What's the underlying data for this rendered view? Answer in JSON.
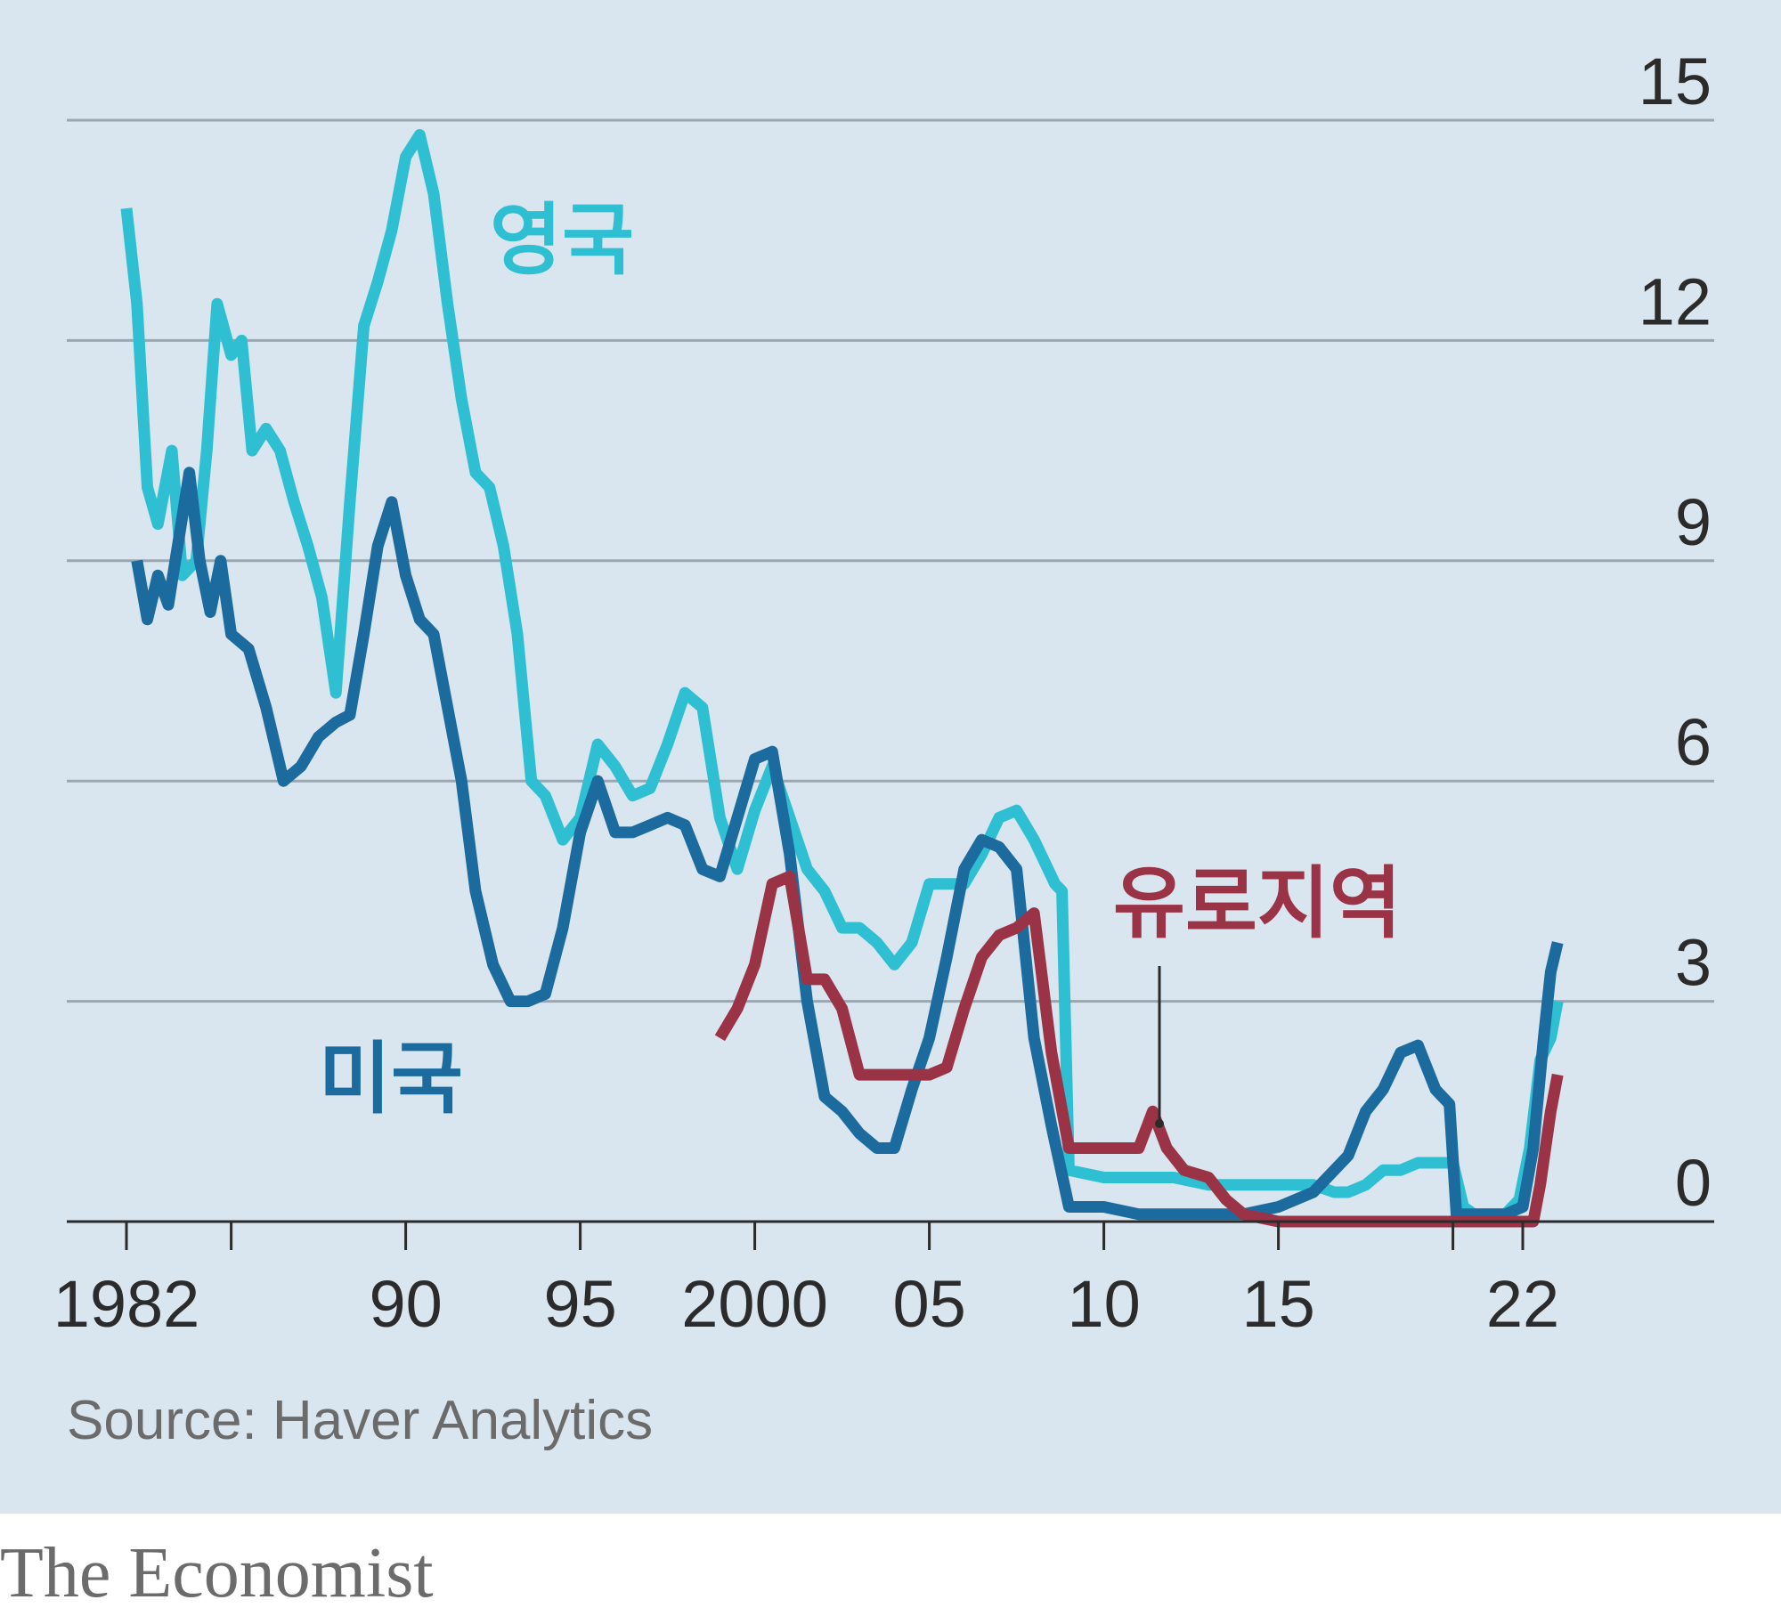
{
  "source": "Source: Haver Analytics",
  "brand": "The Economist",
  "colors": {
    "uk": "#2fbfd3",
    "us": "#1b6b9e",
    "euro": "#9b3346",
    "background": "#d9e6ef",
    "grid": "#9aa7b0",
    "axis": "#2b2b2b"
  },
  "chart_data": {
    "type": "line",
    "title": "",
    "xlabel": "",
    "ylabel": "",
    "ylim": [
      0,
      15
    ],
    "xlim": [
      1981.5,
      2025.5
    ],
    "yticks": [
      "0",
      "3",
      "6",
      "9",
      "12",
      "15"
    ],
    "xticks": [
      {
        "value": 1982,
        "label": "1982"
      },
      {
        "value": 1985,
        "label": ""
      },
      {
        "value": 1990,
        "label": "90"
      },
      {
        "value": 1995,
        "label": "95"
      },
      {
        "value": 2000,
        "label": "2000"
      },
      {
        "value": 2005,
        "label": "05"
      },
      {
        "value": 2010,
        "label": "10"
      },
      {
        "value": 2015,
        "label": "15"
      },
      {
        "value": 2020,
        "label": ""
      },
      {
        "value": 2022,
        "label": "22"
      }
    ],
    "grid": true,
    "legend": "inline labels",
    "series": [
      {
        "name": "영국",
        "key": "uk",
        "x": [
          1982.0,
          1982.3,
          1982.6,
          1982.9,
          1983.3,
          1983.6,
          1984.0,
          1984.3,
          1984.6,
          1985.0,
          1985.3,
          1985.6,
          1986.0,
          1986.4,
          1986.8,
          1987.2,
          1987.6,
          1988.0,
          1988.4,
          1988.8,
          1989.2,
          1989.6,
          1990.0,
          1990.4,
          1990.8,
          1991.2,
          1991.6,
          1992.0,
          1992.4,
          1992.8,
          1993.2,
          1993.6,
          1994.0,
          1994.5,
          1995.0,
          1995.5,
          1996.0,
          1996.5,
          1997.0,
          1997.5,
          1998.0,
          1998.5,
          1999.0,
          1999.5,
          2000.0,
          2000.5,
          2001.0,
          2001.5,
          2002.0,
          2002.5,
          2003.0,
          2003.5,
          2004.0,
          2004.5,
          2005.0,
          2005.5,
          2006.0,
          2006.5,
          2007.0,
          2007.5,
          2008.0,
          2008.3,
          2008.6,
          2008.8,
          2009.0,
          2010.0,
          2011.0,
          2012.0,
          2013.0,
          2014.0,
          2015.0,
          2016.0,
          2016.6,
          2017.0,
          2017.5,
          2018.0,
          2018.5,
          2019.0,
          2019.5,
          2020.0,
          2020.3,
          2020.6,
          2021.0,
          2021.5,
          2021.9,
          2022.2,
          2022.5,
          2022.8,
          2023.0
        ],
        "y": [
          13.8,
          12.5,
          10.0,
          9.5,
          10.5,
          8.8,
          9.0,
          10.5,
          12.5,
          11.8,
          12.0,
          10.5,
          10.8,
          10.5,
          9.8,
          9.2,
          8.5,
          7.2,
          9.8,
          12.2,
          12.8,
          13.5,
          14.5,
          14.8,
          14.0,
          12.5,
          11.2,
          10.2,
          10.0,
          9.2,
          8.0,
          6.0,
          5.8,
          5.2,
          5.5,
          6.5,
          6.2,
          5.8,
          5.9,
          6.5,
          7.2,
          7.0,
          5.5,
          4.8,
          5.6,
          6.2,
          5.5,
          4.8,
          4.5,
          4.0,
          4.0,
          3.8,
          3.5,
          3.8,
          4.6,
          4.6,
          4.6,
          5.0,
          5.5,
          5.6,
          5.2,
          4.9,
          4.6,
          4.5,
          0.7,
          0.6,
          0.6,
          0.6,
          0.5,
          0.5,
          0.5,
          0.5,
          0.4,
          0.4,
          0.5,
          0.7,
          0.7,
          0.8,
          0.8,
          0.8,
          0.2,
          0.1,
          0.1,
          0.1,
          0.3,
          1.0,
          2.2,
          2.5,
          3.0
        ]
      },
      {
        "name": "미국",
        "key": "us",
        "x": [
          1982.3,
          1982.6,
          1982.9,
          1983.2,
          1983.5,
          1983.8,
          1984.1,
          1984.4,
          1984.7,
          1985.0,
          1985.5,
          1986.0,
          1986.5,
          1987.0,
          1987.5,
          1988.0,
          1988.4,
          1988.8,
          1989.2,
          1989.6,
          1990.0,
          1990.4,
          1990.8,
          1991.2,
          1991.6,
          1992.0,
          1992.5,
          1993.0,
          1993.5,
          1994.0,
          1994.5,
          1995.0,
          1995.5,
          1996.0,
          1996.5,
          1997.0,
          1997.5,
          1998.0,
          1998.5,
          1999.0,
          1999.5,
          2000.0,
          2000.5,
          2001.0,
          2001.5,
          2002.0,
          2002.5,
          2003.0,
          2003.5,
          2004.0,
          2004.5,
          2005.0,
          2005.5,
          2006.0,
          2006.5,
          2007.0,
          2007.5,
          2008.0,
          2008.5,
          2009.0,
          2010.0,
          2011.0,
          2012.0,
          2013.0,
          2014.0,
          2015.0,
          2016.0,
          2017.0,
          2017.5,
          2018.0,
          2018.5,
          2019.0,
          2019.5,
          2019.9,
          2020.1,
          2020.3,
          2021.0,
          2021.5,
          2022.0,
          2022.3,
          2022.6,
          2022.8,
          2023.0
        ],
        "y": [
          9.0,
          8.2,
          8.8,
          8.4,
          9.3,
          10.2,
          9.0,
          8.3,
          9.0,
          8.0,
          7.8,
          7.0,
          6.0,
          6.2,
          6.6,
          6.8,
          6.9,
          8.0,
          9.2,
          9.8,
          8.8,
          8.2,
          8.0,
          7.0,
          6.0,
          4.5,
          3.5,
          3.0,
          3.0,
          3.1,
          4.0,
          5.3,
          6.0,
          5.3,
          5.3,
          5.4,
          5.5,
          5.4,
          4.8,
          4.7,
          5.5,
          6.3,
          6.4,
          5.0,
          3.0,
          1.7,
          1.5,
          1.2,
          1.0,
          1.0,
          1.8,
          2.5,
          3.6,
          4.8,
          5.2,
          5.1,
          4.8,
          2.5,
          1.3,
          0.2,
          0.2,
          0.1,
          0.1,
          0.1,
          0.1,
          0.2,
          0.4,
          0.9,
          1.5,
          1.8,
          2.3,
          2.4,
          1.8,
          1.6,
          0.1,
          0.1,
          0.1,
          0.1,
          0.2,
          1.0,
          2.5,
          3.4,
          3.8
        ]
      },
      {
        "name": "유로지역",
        "key": "euro",
        "x": [
          1999.0,
          1999.5,
          2000.0,
          2000.5,
          2001.0,
          2001.5,
          2002.0,
          2002.5,
          2003.0,
          2003.5,
          2004.0,
          2004.5,
          2005.0,
          2005.5,
          2006.0,
          2006.5,
          2007.0,
          2007.5,
          2008.0,
          2008.5,
          2009.0,
          2009.5,
          2010.0,
          2011.0,
          2011.4,
          2011.8,
          2012.3,
          2013.0,
          2013.5,
          2014.0,
          2015.0,
          2016.0,
          2017.0,
          2018.0,
          2019.0,
          2020.0,
          2021.0,
          2022.0,
          2022.3,
          2022.5,
          2022.8,
          2023.0
        ],
        "y": [
          2.5,
          2.9,
          3.5,
          4.6,
          4.7,
          3.3,
          3.3,
          2.9,
          2.0,
          2.0,
          2.0,
          2.0,
          2.0,
          2.1,
          2.9,
          3.6,
          3.9,
          4.0,
          4.2,
          2.3,
          1.0,
          1.0,
          1.0,
          1.0,
          1.5,
          1.0,
          0.7,
          0.6,
          0.3,
          0.1,
          0.0,
          0.0,
          0.0,
          0.0,
          0.0,
          0.0,
          0.0,
          0.0,
          0.0,
          0.5,
          1.5,
          2.0
        ]
      }
    ]
  }
}
